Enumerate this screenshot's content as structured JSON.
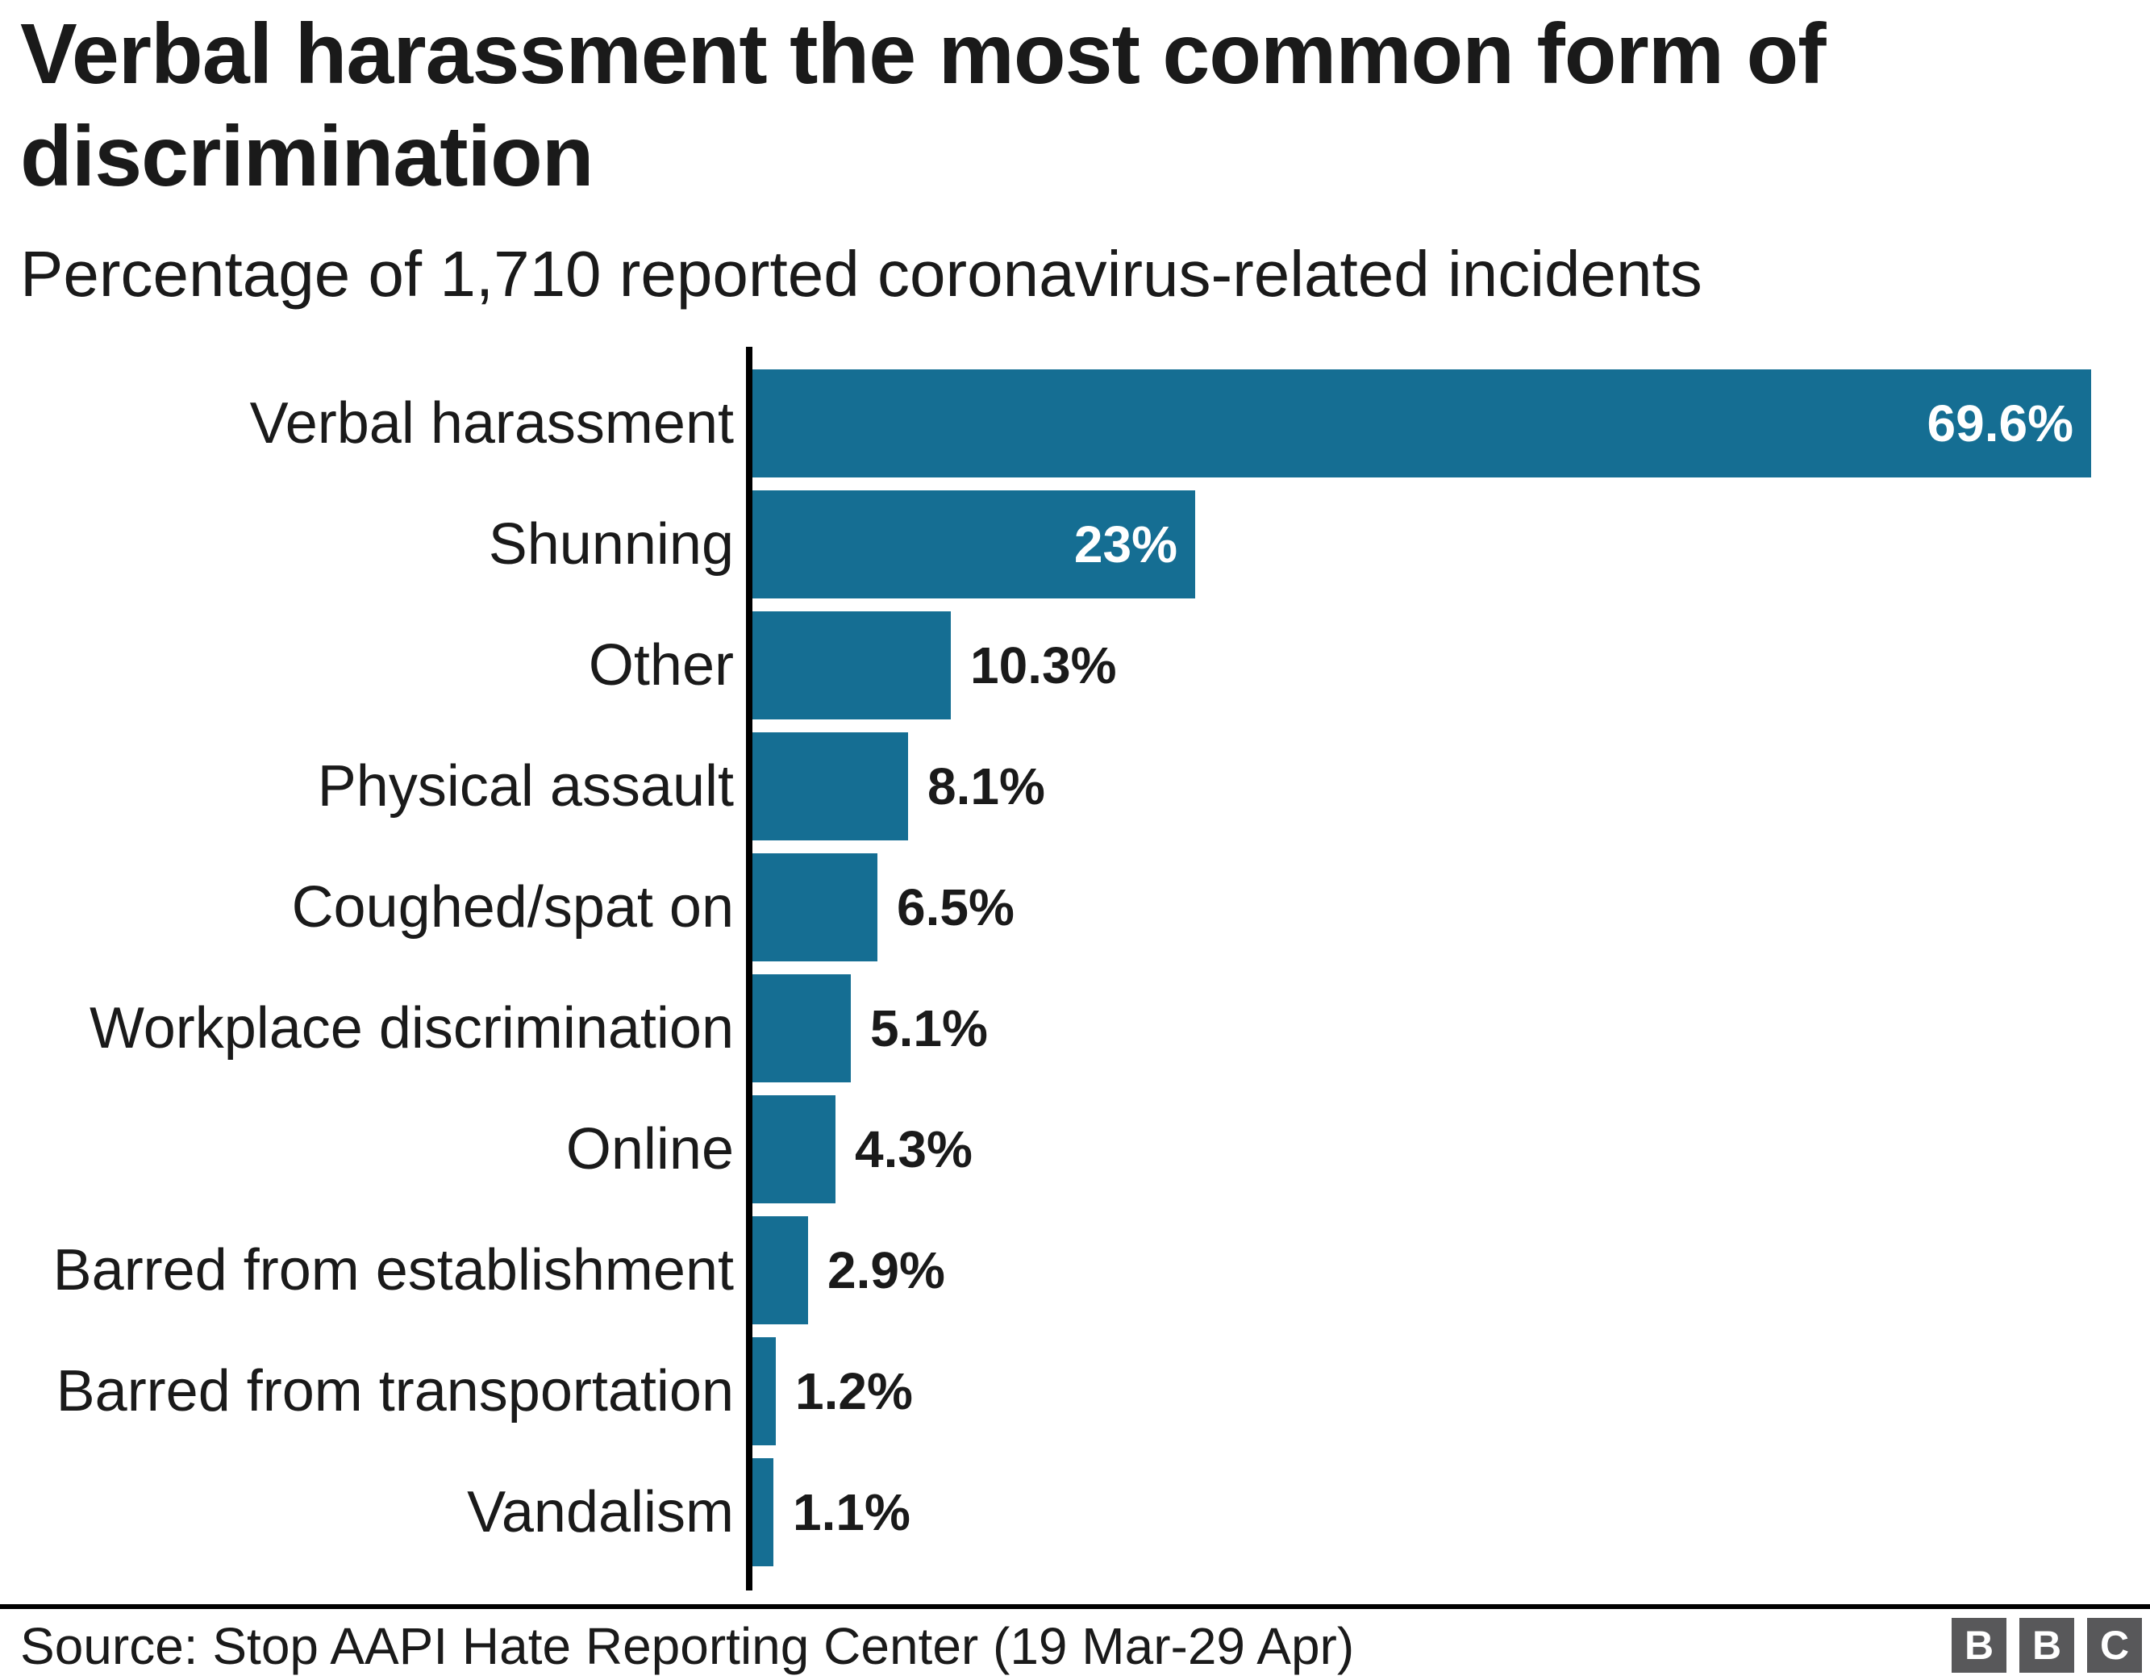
{
  "header": {
    "title": "Verbal harassment the most common form of discrimination",
    "subtitle": "Percentage of 1,710 reported coronavirus-related incidents"
  },
  "chart_data": {
    "type": "bar",
    "orientation": "horizontal",
    "title": "Verbal harassment the most common form of discrimination",
    "subtitle": "Percentage of 1,710 reported coronavirus-related incidents",
    "categories": [
      "Verbal harassment",
      "Shunning",
      "Other",
      "Physical assault",
      "Coughed/spat on",
      "Workplace discrimination",
      "Online",
      "Barred from establishment",
      "Barred from transportation",
      "Vandalism"
    ],
    "values": [
      69.6,
      23,
      10.3,
      8.1,
      6.5,
      5.1,
      4.3,
      2.9,
      1.2,
      1.1
    ],
    "value_labels": [
      "69.6%",
      "23%",
      "10.3%",
      "8.1%",
      "6.5%",
      "5.1%",
      "4.3%",
      "2.9%",
      "1.2%",
      "1.1%"
    ],
    "xlim": [
      0,
      69.6
    ],
    "grid": false,
    "legend": false,
    "bar_color": "#156E93",
    "value_label_color_inside": "#ffffff",
    "value_label_color_outside": "#1a1a1a",
    "axis_color": "#000000"
  },
  "footer": {
    "source": "Source: Stop AAPI Hate Reporting Center (19 Mar-29 Apr)",
    "logo_blocks": [
      "B",
      "B",
      "C"
    ],
    "logo_color": "#58585a"
  }
}
